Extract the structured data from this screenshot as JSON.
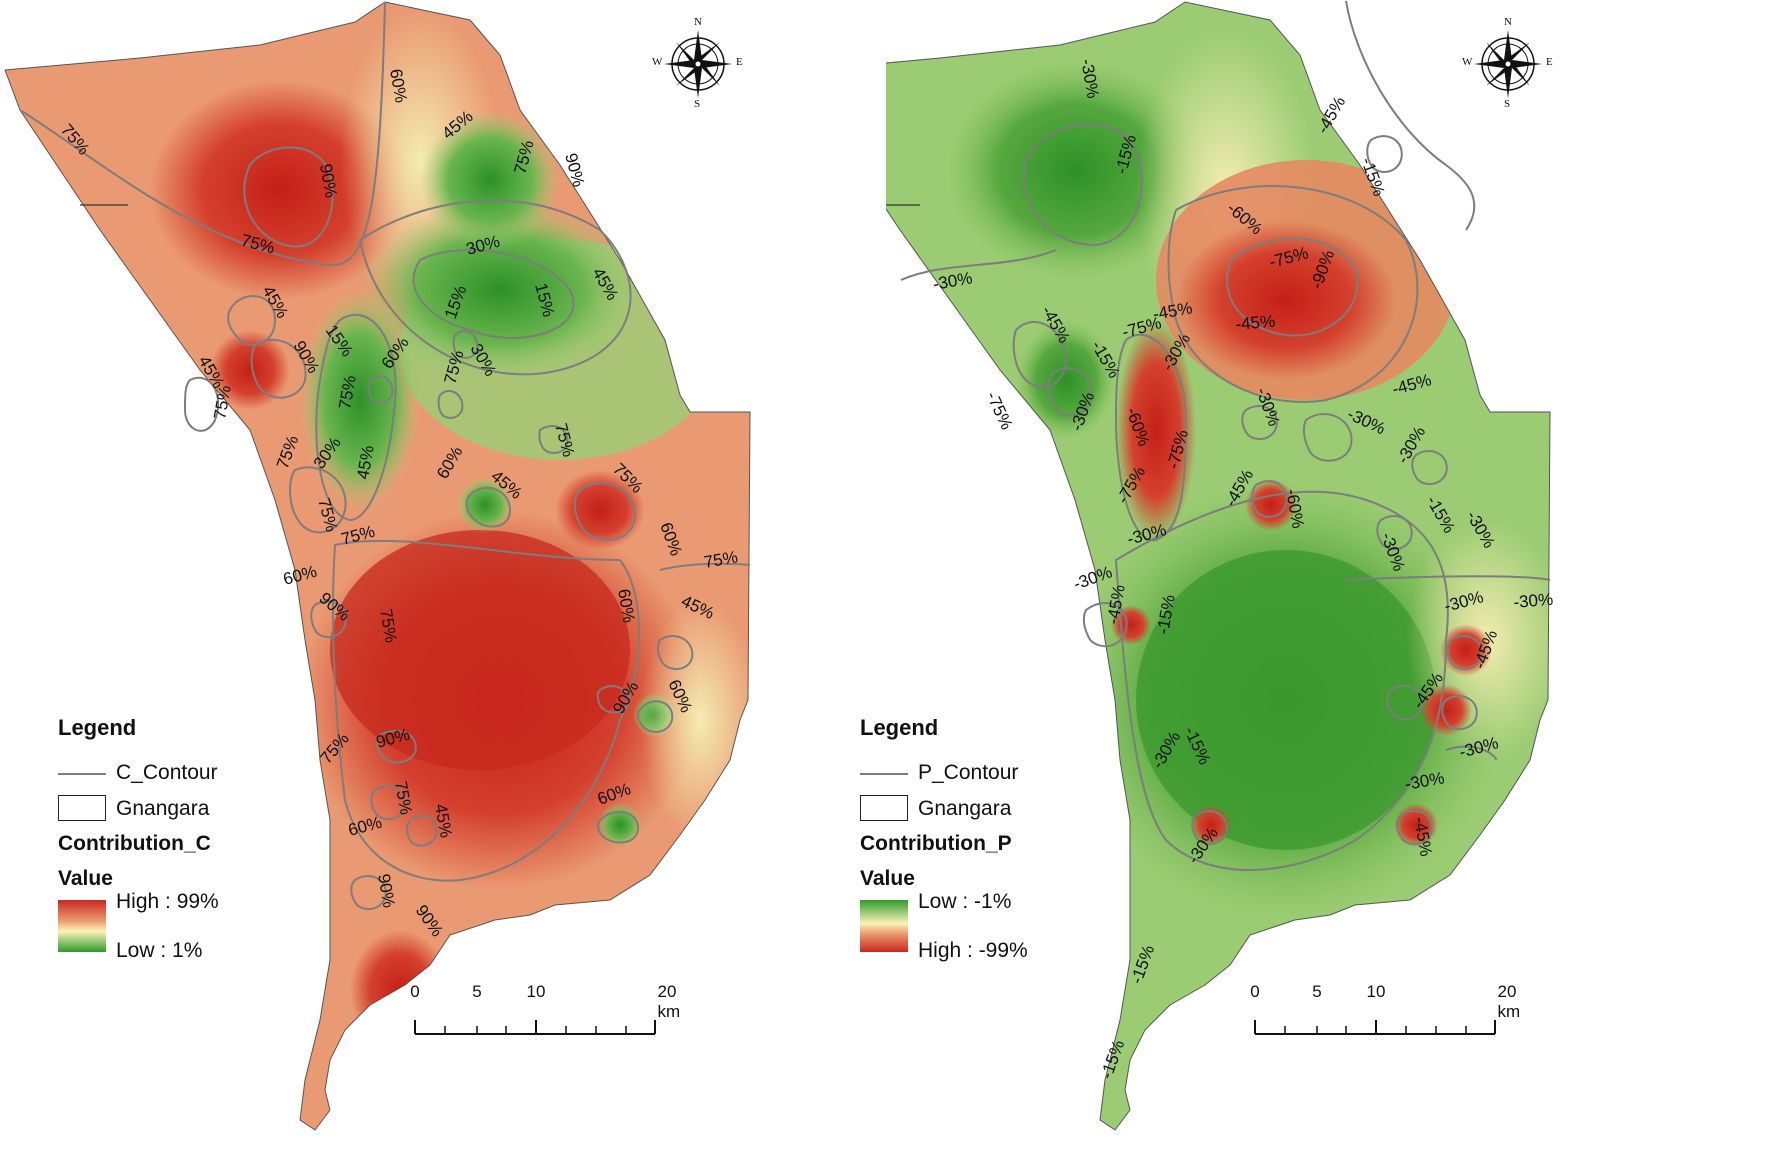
{
  "maps": [
    {
      "id": "c",
      "legend": {
        "title": "Legend",
        "contour_label": "C_Contour",
        "boundary_label": "Gnangara",
        "layer_title": "Contribution_C",
        "value_title": "Value",
        "high_label": "High : 99%",
        "low_label": "Low : 1%",
        "ramp_top_color": "#c8281e",
        "ramp_mid_color": "#fbf3b8",
        "ramp_bottom_color": "#2f9a2a"
      },
      "contour_labels": [
        "75%",
        "90%",
        "75%",
        "60%",
        "45%",
        "75%",
        "90%",
        "30%",
        "15%",
        "15%",
        "45%",
        "45%",
        "15%",
        "30%",
        "90%",
        "75%",
        "60%",
        "45%",
        "75%",
        "75%",
        "75%",
        "30%",
        "45%",
        "75%",
        "75%",
        "60%",
        "45%",
        "75%",
        "75%",
        "60%",
        "75%",
        "60%",
        "90%",
        "75%",
        "60%",
        "45%",
        "60%",
        "90%",
        "75%",
        "90%",
        "75%",
        "60%",
        "45%",
        "60%",
        "90%"
      ]
    },
    {
      "id": "p",
      "legend": {
        "title": "Legend",
        "contour_label": "P_Contour",
        "boundary_label": "Gnangara",
        "layer_title": "Contribution_P",
        "value_title": "Value",
        "high_label": "Low : -1%",
        "low_label": "High : -99%",
        "ramp_top_color": "#2f9a2a",
        "ramp_mid_color": "#fbf3b8",
        "ramp_bottom_color": "#c8281e"
      },
      "contour_labels": [
        "-30%",
        "-15%",
        "-45%",
        "-15%",
        "-60%",
        "-75%",
        "-90%",
        "-30%",
        "-45%",
        "-45%",
        "-45%",
        "-75%",
        "-15%",
        "-30%",
        "-75%",
        "-30%",
        "-30%",
        "-60%",
        "-75%",
        "-30%",
        "-45%",
        "-30%",
        "-75%",
        "-30%",
        "-45%",
        "-60%",
        "-30%",
        "-15%",
        "-30%",
        "-30%",
        "-30%",
        "-45%",
        "-15%",
        "-45%",
        "-30%",
        "-45%",
        "-30%",
        "-30%",
        "-15%",
        "-30%",
        "-30%",
        "-45%",
        "-15%",
        "-15%"
      ]
    }
  ],
  "north_arrow": {
    "n": "N",
    "s": "S",
    "e": "E",
    "w": "W"
  },
  "scalebar": {
    "labels": [
      "0",
      "5",
      "10",
      "20 km"
    ]
  }
}
